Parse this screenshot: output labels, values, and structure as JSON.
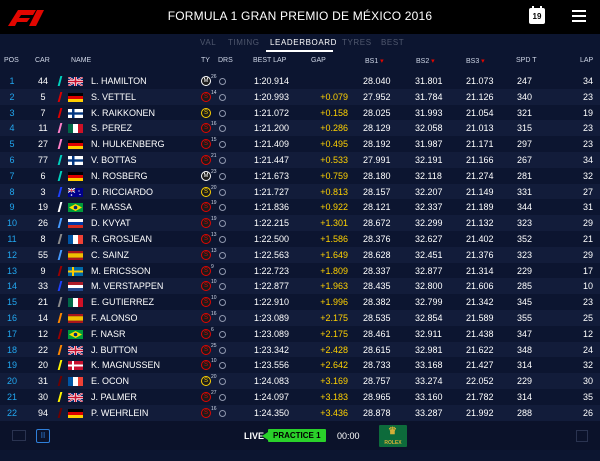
{
  "header": {
    "logo_text": "F1",
    "title": "FORMULA 1 GRAN PREMIO DE MÉXICO 2016",
    "calendar_day": "19"
  },
  "tabs": [
    "VAL",
    "TIMING",
    "LEADERBOARD",
    "TYRES",
    "BEST"
  ],
  "active_tab": "LEADERBOARD",
  "columns": {
    "pos": "POS",
    "car": "CAR",
    "name": "NAME",
    "ty": "TY",
    "drs": "DRS",
    "best_lap": "BEST LAP",
    "gap": "GAP",
    "bs1": "BS1",
    "bs2": "BS2",
    "bs3": "BS3",
    "spd_t": "SPD T",
    "lap": "LAP"
  },
  "rows": [
    {
      "pos": "1",
      "car": "44",
      "name": "L. HAMILTON",
      "team": "#00d2be",
      "flag": "gb",
      "tyre": "M",
      "tyre_color": "#ffffff",
      "tyre_laps": "26",
      "best": "1:20.914",
      "gap": "",
      "bs1": "28.040",
      "bs2": "31.801",
      "bs3": "21.073",
      "spd": "247",
      "lap": "34"
    },
    {
      "pos": "2",
      "car": "5",
      "name": "S. VETTEL",
      "team": "#dc0000",
      "flag": "de",
      "tyre": "S",
      "tyre_color": "#e10600",
      "tyre_laps": "14",
      "best": "1:20.993",
      "gap": "+0.079",
      "bs1": "27.952",
      "bs2": "31.784",
      "bs3": "21.126",
      "spd": "340",
      "lap": "23"
    },
    {
      "pos": "3",
      "car": "7",
      "name": "K. RAIKKONEN",
      "team": "#dc0000",
      "flag": "fi",
      "tyre": "S",
      "tyre_color": "#ffd200",
      "tyre_laps": "",
      "best": "1:21.072",
      "gap": "+0.158",
      "bs1": "28.025",
      "bs2": "31.993",
      "bs3": "21.054",
      "spd": "321",
      "lap": "19"
    },
    {
      "pos": "4",
      "car": "11",
      "name": "S. PEREZ",
      "team": "#ff80c7",
      "flag": "mx",
      "tyre": "S",
      "tyre_color": "#e10600",
      "tyre_laps": "16",
      "best": "1:21.200",
      "gap": "+0.286",
      "bs1": "28.129",
      "bs2": "32.058",
      "bs3": "21.013",
      "spd": "315",
      "lap": "23"
    },
    {
      "pos": "5",
      "car": "27",
      "name": "N. HULKENBERG",
      "team": "#ff80c7",
      "flag": "de",
      "tyre": "S",
      "tyre_color": "#e10600",
      "tyre_laps": "15",
      "best": "1:21.409",
      "gap": "+0.495",
      "bs1": "28.192",
      "bs2": "31.987",
      "bs3": "21.171",
      "spd": "297",
      "lap": "23"
    },
    {
      "pos": "6",
      "car": "77",
      "name": "V. BOTTAS",
      "team": "#00d2be",
      "flag": "fi",
      "tyre": "S",
      "tyre_color": "#e10600",
      "tyre_laps": "21",
      "best": "1:21.447",
      "gap": "+0.533",
      "bs1": "27.991",
      "bs2": "32.191",
      "bs3": "21.166",
      "spd": "267",
      "lap": "34"
    },
    {
      "pos": "7",
      "car": "6",
      "name": "N. ROSBERG",
      "team": "#00d2be",
      "flag": "de",
      "tyre": "M",
      "tyre_color": "#ffffff",
      "tyre_laps": "23",
      "best": "1:21.673",
      "gap": "+0.759",
      "bs1": "28.180",
      "bs2": "32.118",
      "bs3": "21.274",
      "spd": "281",
      "lap": "32"
    },
    {
      "pos": "8",
      "car": "3",
      "name": "D. RICCIARDO",
      "team": "#1e41ff",
      "flag": "au",
      "tyre": "S",
      "tyre_color": "#ffd200",
      "tyre_laps": "20",
      "best": "1:21.727",
      "gap": "+0.813",
      "bs1": "28.157",
      "bs2": "32.207",
      "bs3": "21.149",
      "spd": "331",
      "lap": "27"
    },
    {
      "pos": "9",
      "car": "19",
      "name": "F. MASSA",
      "team": "#ffffff",
      "flag": "br",
      "tyre": "S",
      "tyre_color": "#e10600",
      "tyre_laps": "19",
      "best": "1:21.836",
      "gap": "+0.922",
      "bs1": "28.121",
      "bs2": "32.337",
      "bs3": "21.189",
      "spd": "344",
      "lap": "31"
    },
    {
      "pos": "10",
      "car": "26",
      "name": "D. KVYAT",
      "team": "#469bff",
      "flag": "ru",
      "tyre": "S",
      "tyre_color": "#e10600",
      "tyre_laps": "19",
      "best": "1:22.215",
      "gap": "+1.301",
      "bs1": "28.672",
      "bs2": "32.299",
      "bs3": "21.132",
      "spd": "323",
      "lap": "29"
    },
    {
      "pos": "11",
      "car": "8",
      "name": "R. GROSJEAN",
      "team": "#8c8c8c",
      "flag": "fr",
      "tyre": "S",
      "tyre_color": "#e10600",
      "tyre_laps": "13",
      "best": "1:22.500",
      "gap": "+1.586",
      "bs1": "28.376",
      "bs2": "32.627",
      "bs3": "21.402",
      "spd": "352",
      "lap": "21"
    },
    {
      "pos": "12",
      "car": "55",
      "name": "C. SAINZ",
      "team": "#469bff",
      "flag": "es",
      "tyre": "S",
      "tyre_color": "#e10600",
      "tyre_laps": "13",
      "best": "1:22.563",
      "gap": "+1.649",
      "bs1": "28.628",
      "bs2": "32.451",
      "bs3": "21.376",
      "spd": "323",
      "lap": "29"
    },
    {
      "pos": "13",
      "car": "9",
      "name": "M. ERICSSON",
      "team": "#9b0000",
      "flag": "se",
      "tyre": "S",
      "tyre_color": "#e10600",
      "tyre_laps": "9",
      "best": "1:22.723",
      "gap": "+1.809",
      "bs1": "28.337",
      "bs2": "32.877",
      "bs3": "21.314",
      "spd": "229",
      "lap": "17"
    },
    {
      "pos": "14",
      "car": "33",
      "name": "M. VERSTAPPEN",
      "team": "#1e41ff",
      "flag": "nl",
      "tyre": "S",
      "tyre_color": "#e10600",
      "tyre_laps": "10",
      "best": "1:22.877",
      "gap": "+1.963",
      "bs1": "28.435",
      "bs2": "32.800",
      "bs3": "21.606",
      "spd": "285",
      "lap": "10"
    },
    {
      "pos": "15",
      "car": "21",
      "name": "E. GUTIERREZ",
      "team": "#8c8c8c",
      "flag": "mx",
      "tyre": "S",
      "tyre_color": "#e10600",
      "tyre_laps": "10",
      "best": "1:22.910",
      "gap": "+1.996",
      "bs1": "28.382",
      "bs2": "32.799",
      "bs3": "21.342",
      "spd": "345",
      "lap": "23"
    },
    {
      "pos": "16",
      "car": "14",
      "name": "F. ALONSO",
      "team": "#ff8700",
      "flag": "es",
      "tyre": "S",
      "tyre_color": "#e10600",
      "tyre_laps": "16",
      "best": "1:23.089",
      "gap": "+2.175",
      "bs1": "28.535",
      "bs2": "32.854",
      "bs3": "21.589",
      "spd": "355",
      "lap": "25"
    },
    {
      "pos": "17",
      "car": "12",
      "name": "F. NASR",
      "team": "#9b0000",
      "flag": "br",
      "tyre": "S",
      "tyre_color": "#e10600",
      "tyre_laps": "6",
      "best": "1:23.089",
      "gap": "+2.175",
      "bs1": "28.461",
      "bs2": "32.911",
      "bs3": "21.438",
      "spd": "347",
      "lap": "12"
    },
    {
      "pos": "18",
      "car": "22",
      "name": "J. BUTTON",
      "team": "#ff8700",
      "flag": "gb",
      "tyre": "S",
      "tyre_color": "#e10600",
      "tyre_laps": "25",
      "best": "1:23.342",
      "gap": "+2.428",
      "bs1": "28.615",
      "bs2": "32.981",
      "bs3": "21.622",
      "spd": "348",
      "lap": "24"
    },
    {
      "pos": "19",
      "car": "20",
      "name": "K. MAGNUSSEN",
      "team": "#fff500",
      "flag": "dk",
      "tyre": "S",
      "tyre_color": "#e10600",
      "tyre_laps": "10",
      "best": "1:23.556",
      "gap": "+2.642",
      "bs1": "28.733",
      "bs2": "33.168",
      "bs3": "21.427",
      "spd": "314",
      "lap": "32"
    },
    {
      "pos": "20",
      "car": "31",
      "name": "E. OCON",
      "team": "#6e0000",
      "flag": "fr",
      "tyre": "S",
      "tyre_color": "#ffd200",
      "tyre_laps": "20",
      "best": "1:24.083",
      "gap": "+3.169",
      "bs1": "28.757",
      "bs2": "33.274",
      "bs3": "22.052",
      "spd": "229",
      "lap": "30"
    },
    {
      "pos": "21",
      "car": "30",
      "name": "J. PALMER",
      "team": "#fff500",
      "flag": "gb",
      "tyre": "S",
      "tyre_color": "#e10600",
      "tyre_laps": "27",
      "best": "1:24.097",
      "gap": "+3.183",
      "bs1": "28.965",
      "bs2": "33.160",
      "bs3": "21.782",
      "spd": "314",
      "lap": "35"
    },
    {
      "pos": "22",
      "car": "94",
      "name": "P. WEHRLEIN",
      "team": "#6e0000",
      "flag": "de",
      "tyre": "S",
      "tyre_color": "#e10600",
      "tyre_laps": "16",
      "best": "1:24.350",
      "gap": "+3.436",
      "bs1": "28.878",
      "bs2": "33.287",
      "bs3": "21.992",
      "spd": "288",
      "lap": "26"
    }
  ],
  "footer": {
    "pause_symbol": "II",
    "live_label": "LIVE",
    "session": "PRACTICE 1",
    "clock": "00:00",
    "sponsor": "ROLEX"
  }
}
